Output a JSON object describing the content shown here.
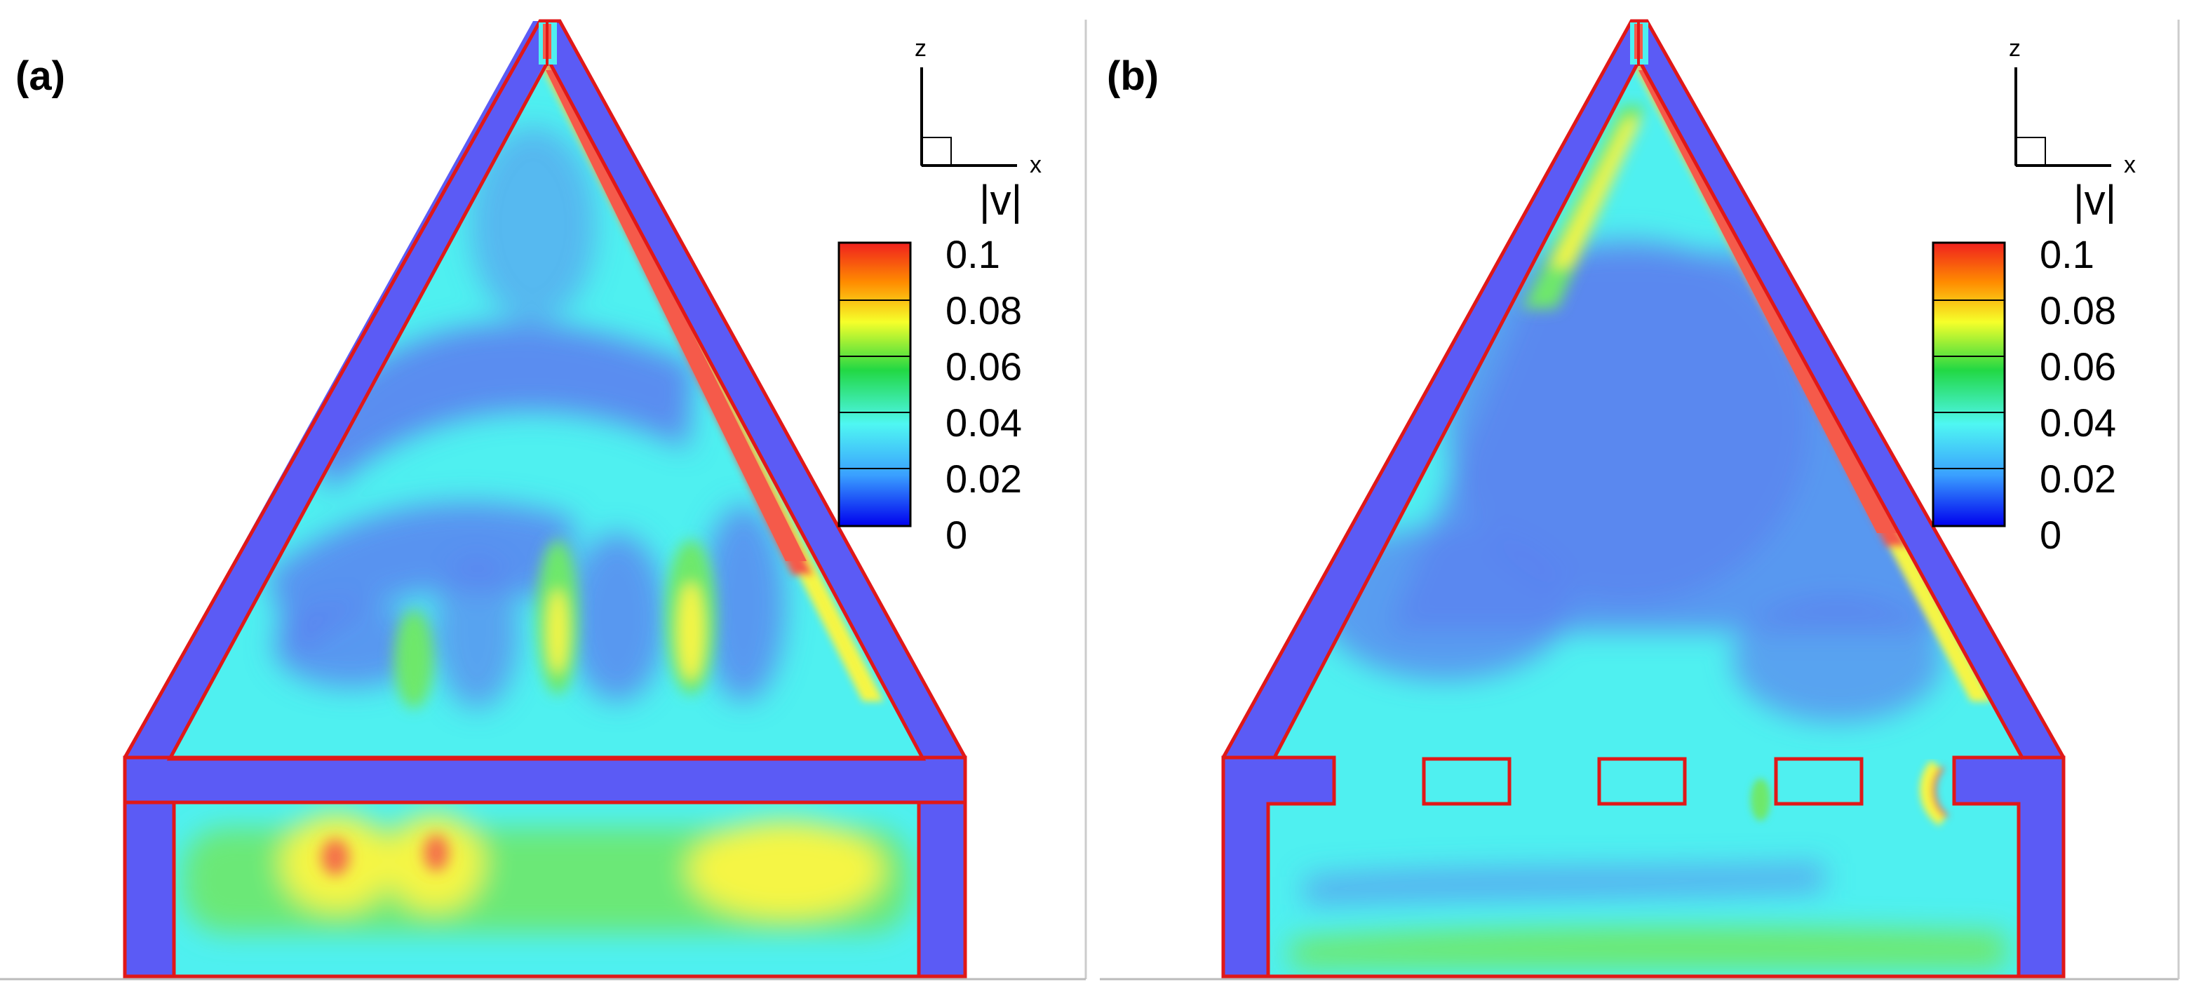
{
  "panels": [
    {
      "label": "(a)",
      "variant": "closed-floor",
      "axis_x": "x",
      "axis_z": "z",
      "colorbar_title": "|v|",
      "colorbar_ticks": [
        "0.1",
        "0.08",
        "0.06",
        "0.04",
        "0.02",
        "0"
      ]
    },
    {
      "label": "(b)",
      "variant": "slotted-floor",
      "axis_x": "x",
      "axis_z": "z",
      "colorbar_title": "|v|",
      "colorbar_ticks": [
        "0.1",
        "0.08",
        "0.06",
        "0.04",
        "0.02",
        "0"
      ]
    }
  ],
  "colorbar": {
    "min": 0,
    "max": 0.1,
    "colors": [
      "#0000ee",
      "#3aa0ff",
      "#4ff7f2",
      "#22d844",
      "#f6ff2a",
      "#ff8c00",
      "#f0201e"
    ]
  },
  "colors": {
    "wall": "#5b5bf5",
    "outline": "#e01818",
    "low": "#5b7cf2",
    "mid": "#55f5ee",
    "green": "#6ee86a",
    "yellow": "#f5f545",
    "hot": "#f55a4a"
  }
}
